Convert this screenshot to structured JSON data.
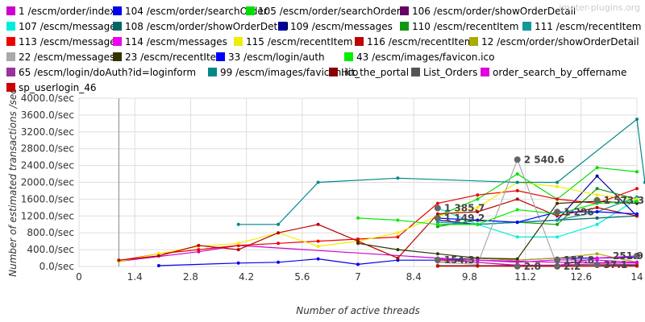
{
  "watermark": "jmeter-plugins.org",
  "chart_data": {
    "type": "line",
    "xlabel": "Number of active threads",
    "ylabel": "Number of estimated transactions /sec",
    "xlim": [
      0,
      14
    ],
    "ylim": [
      0,
      4000
    ],
    "x_ticks": [
      "0",
      "1.4",
      "2.8",
      "4.2",
      "5.6",
      "7",
      "8.4",
      "9.8",
      "11.2",
      "12.6",
      "14"
    ],
    "y_ticks": [
      "0.0/sec",
      "400.0/sec",
      "800.0/sec",
      "1200.0/sec",
      "1600.0/sec",
      "2000.0/sec",
      "2400.0/sec",
      "2800.0/sec",
      "3200.0/sec",
      "3600.0/sec",
      "4000.0/sec"
    ],
    "grid": true,
    "legend_position": "top",
    "series": [
      {
        "name": "1 /escm/order/index",
        "color": "#cc00cc",
        "x": [
          1,
          3,
          4,
          9,
          10,
          12,
          14
        ],
        "y": [
          120,
          350,
          500,
          200,
          150,
          100,
          80
        ]
      },
      {
        "name": "104 /escm/order/searchOrder",
        "color": "#0000ee",
        "x": [
          2,
          4,
          5,
          6,
          7,
          8,
          9,
          10,
          11,
          12,
          13,
          14
        ],
        "y": [
          20,
          80,
          100,
          180,
          50,
          150,
          150,
          200,
          150,
          200,
          200,
          220
        ]
      },
      {
        "name": "105 /escm/order/searchOrder",
        "color": "#00dd00",
        "x": [
          9,
          10,
          11,
          12,
          13,
          14
        ],
        "y": [
          1200,
          1600,
          2200,
          1600,
          2350,
          2250
        ]
      },
      {
        "name": "106 /escm/order/showOrderDetail",
        "color": "#660066",
        "x": [
          9,
          10,
          11,
          12,
          13,
          14
        ],
        "y": [
          10,
          20,
          20,
          20,
          30,
          30
        ]
      },
      {
        "name": "107 /escm/messages",
        "color": "#00eedd",
        "x": [
          9,
          10,
          11,
          12,
          13,
          14
        ],
        "y": [
          1385.7,
          1000,
          700,
          700,
          1000,
          1600
        ]
      },
      {
        "name": "108 /escm/order/showOrderDetail",
        "color": "#006666",
        "x": [
          9,
          10,
          11,
          12,
          13,
          14
        ],
        "y": [
          1000,
          1000,
          1050,
          1100,
          1150,
          1200
        ]
      },
      {
        "name": "109 /escm/messages",
        "color": "#000099",
        "x": [
          9,
          10,
          11,
          12,
          13,
          14
        ],
        "y": [
          1100,
          1000,
          1050,
          1100,
          2150,
          1200
        ]
      },
      {
        "name": "110 /escm/recentItem",
        "color": "#119911",
        "x": [
          9,
          10,
          11,
          12,
          13,
          14
        ],
        "y": [
          950,
          1100,
          1050,
          1000,
          1850,
          1600
        ]
      },
      {
        "name": "111 /escm/recentItem",
        "color": "#119999",
        "x": [
          9,
          10,
          11,
          12,
          13,
          14
        ],
        "y": [
          1050,
          1000,
          1050,
          1100,
          1300,
          1650
        ]
      },
      {
        "name": "113 /escm/messages",
        "color": "#ee0000",
        "x": [
          1,
          2,
          3,
          4,
          5,
          6,
          7,
          8,
          9,
          10,
          11,
          12,
          13,
          14
        ],
        "y": [
          140,
          300,
          400,
          500,
          550,
          600,
          650,
          700,
          1500,
          1700,
          1800,
          1600,
          1500,
          1850
        ]
      },
      {
        "name": "114 /escm/messages",
        "color": "#ee00ee",
        "x": [
          9,
          10,
          11,
          12,
          13,
          14
        ],
        "y": [
          180,
          100,
          20,
          20,
          200,
          250
        ]
      },
      {
        "name": "115 /escm/recentItem",
        "color": "#eeee00",
        "x": [
          1,
          2,
          3,
          4,
          5,
          6,
          7,
          8,
          9,
          10,
          11,
          12,
          13,
          14
        ],
        "y": [
          120,
          300,
          480,
          550,
          800,
          480,
          600,
          800,
          1200,
          1400,
          2000,
          1900,
          1700,
          1600
        ]
      },
      {
        "name": "116 /escm/recentItem",
        "color": "#bb0000",
        "x": [
          1,
          2,
          3,
          4,
          5,
          6,
          7,
          8,
          9,
          10,
          11,
          12,
          13,
          14
        ],
        "y": [
          150,
          250,
          500,
          400,
          800,
          1000,
          600,
          200,
          1250,
          1300,
          1600,
          1200,
          1400,
          1200
        ]
      },
      {
        "name": "12 /escm/order/showOrderDetail",
        "color": "#aaaa00",
        "x": [
          9,
          10,
          11,
          12,
          13,
          14
        ],
        "y": [
          100,
          200,
          150,
          200,
          300,
          100
        ]
      },
      {
        "name": "22 /escm/messages",
        "color": "#aaaaaa",
        "x": [
          9,
          10,
          11,
          12,
          13,
          14
        ],
        "y": [
          100,
          50,
          2540.6,
          10,
          37.1,
          20
        ]
      },
      {
        "name": "23 /escm/recentItem",
        "color": "#333300",
        "x": [
          7,
          8,
          9,
          10,
          11,
          12,
          13,
          14
        ],
        "y": [
          550,
          400,
          300,
          200,
          180,
          1500,
          1550,
          1500
        ]
      },
      {
        "name": "33 /escm/login/auth",
        "color": "#0000ff",
        "x": [
          9,
          10,
          11,
          12,
          13,
          14
        ],
        "y": [
          1149.2,
          1100,
          1050,
          1296,
          1300,
          1250
        ]
      },
      {
        "name": "43 /escm/images/favicon.ico",
        "color": "#00ee00",
        "x": [
          7,
          8,
          9,
          10,
          11,
          12,
          13,
          14
        ],
        "y": [
          1150,
          1100,
          1000,
          1000,
          1350,
          1250,
          1500,
          1550
        ]
      },
      {
        "name": "65 /escm/login/doAuth?id=loginform",
        "color": "#993399",
        "x": [
          9,
          10,
          11,
          12,
          13,
          14
        ],
        "y": [
          154.3,
          100,
          30,
          30,
          60,
          40
        ]
      },
      {
        "name": "99 /escm/images/favicon.ico",
        "color": "#008888",
        "x": [
          4,
          5,
          6,
          8,
          11,
          12,
          14,
          14.2
        ],
        "y": [
          1000,
          1000,
          2000,
          2100,
          2000,
          2000,
          3500,
          2000
        ]
      },
      {
        "name": "Hit_the_portal",
        "color": "#880000",
        "x": [
          9,
          10,
          11,
          12,
          13,
          14
        ],
        "y": [
          10,
          10,
          10,
          10,
          10,
          10
        ]
      },
      {
        "name": "List_Orders",
        "color": "#555555",
        "x": [
          9,
          10,
          11,
          12,
          13,
          14
        ],
        "y": [
          20,
          20,
          2.8,
          10,
          20,
          30
        ]
      },
      {
        "name": "order_search_by_offername",
        "color": "#dd00dd",
        "x": [
          9,
          10,
          11,
          12,
          13,
          14
        ],
        "y": [
          154.3,
          150,
          100,
          157.8,
          150,
          100
        ]
      },
      {
        "name": "sp_userlogin_46",
        "color": "#cc0000",
        "x": [
          9,
          10,
          11,
          12,
          13,
          14
        ],
        "y": [
          10,
          10,
          10,
          2.2,
          10,
          10
        ]
      }
    ],
    "annotations": [
      {
        "text": "2 540.6",
        "x": 11,
        "y": 2540.6
      },
      {
        "text": "1 385.7",
        "x": 9,
        "y": 1385.7
      },
      {
        "text": "1 296",
        "x": 12,
        "y": 1296
      },
      {
        "text": "1 573.3",
        "x": 13,
        "y": 1573.3
      },
      {
        "text": "1 149.2",
        "x": 9,
        "y": 1149.2
      },
      {
        "text": "154.3",
        "x": 9,
        "y": 154.3
      },
      {
        "text": "157.8",
        "x": 12,
        "y": 157.8
      },
      {
        "text": "251.9",
        "x": 14,
        "y": 251.9
      },
      {
        "text": "37.1",
        "x": 13,
        "y": 37.1
      },
      {
        "text": "2.8",
        "x": 11,
        "y": 2.8
      },
      {
        "text": "2.2",
        "x": 12,
        "y": 2.2
      }
    ]
  }
}
